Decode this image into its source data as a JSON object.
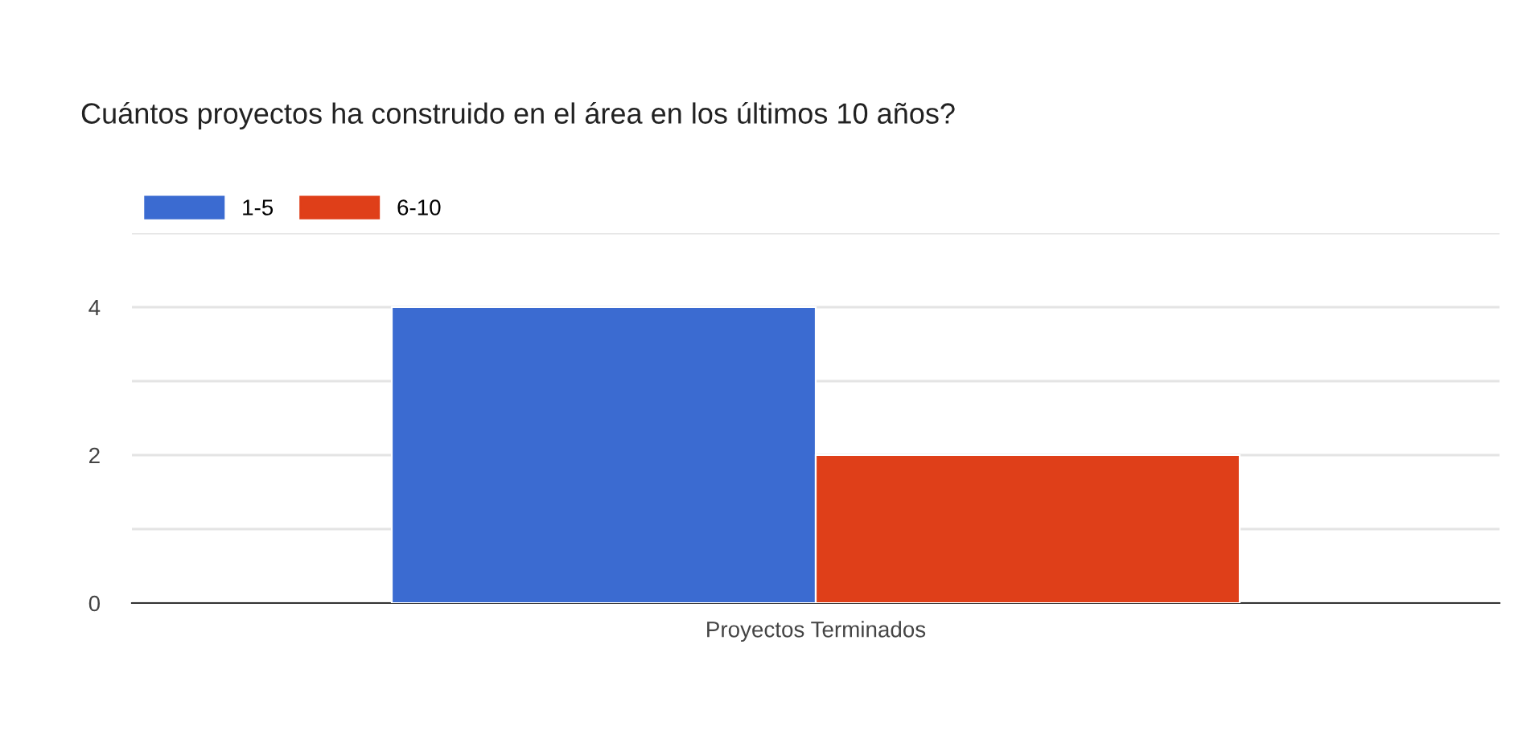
{
  "chart_data": {
    "type": "bar",
    "title": "Cuántos proyectos ha construido en el área en los últimos 10 años?",
    "categories": [
      "Proyectos Terminados"
    ],
    "series": [
      {
        "name": "1-5",
        "color": "#3b6bd1",
        "values": [
          4
        ]
      },
      {
        "name": "6-10",
        "color": "#df3f19",
        "values": [
          2
        ]
      }
    ],
    "ylim": [
      0,
      5
    ],
    "yticks": [
      0,
      {
        "value": 1,
        "label": null
      },
      2,
      {
        "value": 3,
        "label": null
      },
      4,
      {
        "value": 5,
        "label": null
      }
    ],
    "grid": "y",
    "legend": "top left"
  }
}
